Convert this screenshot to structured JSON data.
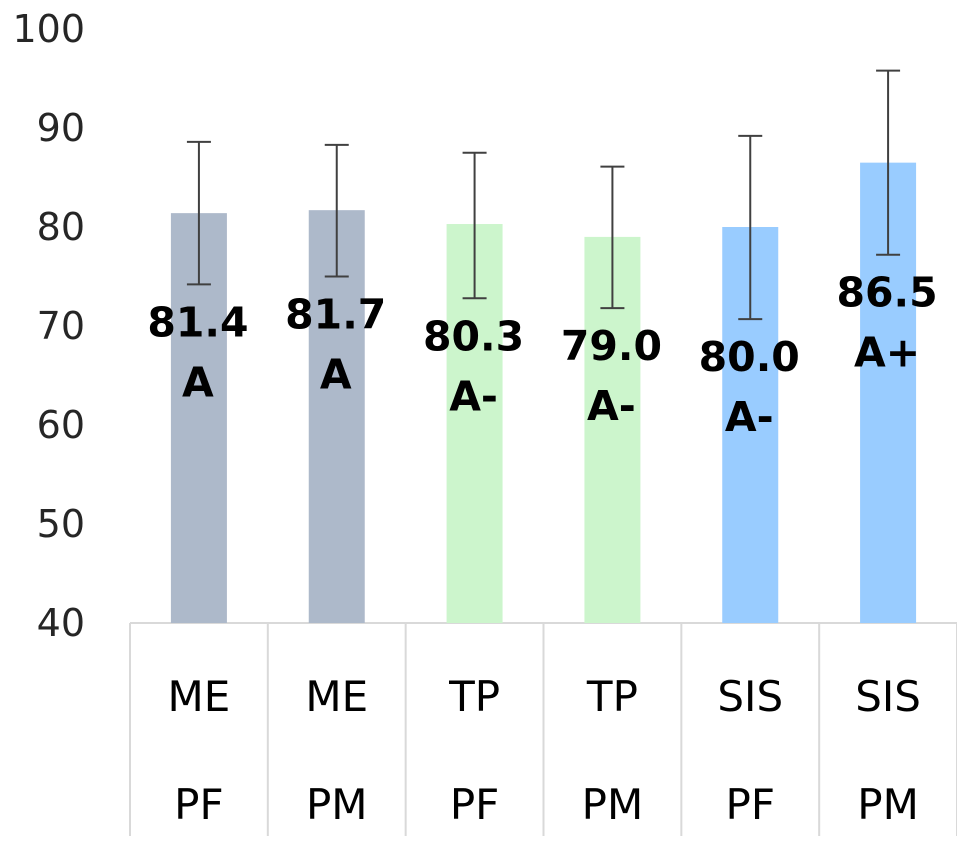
{
  "chart_data": {
    "type": "bar",
    "categories": [
      [
        "ME",
        "PF"
      ],
      [
        "ME",
        "PM"
      ],
      [
        "TP",
        "PF"
      ],
      [
        "TP",
        "PM"
      ],
      [
        "SIS",
        "PF"
      ],
      [
        "SIS",
        "PM"
      ]
    ],
    "values": [
      81.4,
      81.7,
      80.3,
      79.0,
      80.0,
      86.5
    ],
    "value_labels": [
      "81.4",
      "81.7",
      "80.3",
      "79.0",
      "80.0",
      "86.5"
    ],
    "grade_labels": [
      "A",
      "A",
      "A-",
      "A-",
      "A-",
      "A+"
    ],
    "error_bars": {
      "lower": [
        74.2,
        75.0,
        72.8,
        71.8,
        70.7,
        77.2
      ],
      "upper": [
        88.6,
        88.3,
        87.5,
        86.1,
        89.2,
        95.8
      ]
    },
    "bar_colors": [
      "#adb9ca",
      "#adb9ca",
      "#ccf5cc",
      "#ccf5cc",
      "#99ccff",
      "#99ccff"
    ],
    "ylim": [
      40,
      100
    ],
    "yticks": [
      "40",
      "50",
      "60",
      "70",
      "80",
      "90",
      "100"
    ],
    "title": "",
    "xlabel": "",
    "ylabel": "",
    "grid": false,
    "legend": "none"
  }
}
